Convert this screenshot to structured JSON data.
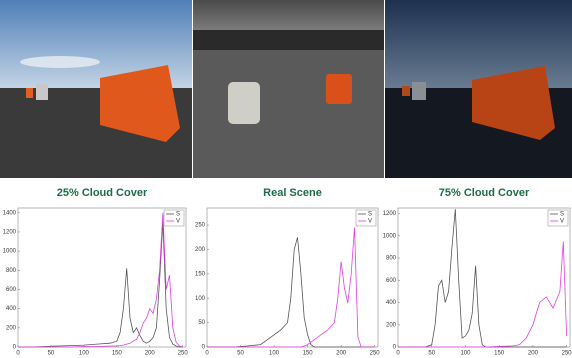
{
  "chart_data": [
    {
      "type": "line",
      "title": "25% Cloud Cover",
      "x": [
        0,
        20,
        40,
        60,
        80,
        100,
        120,
        140,
        150,
        155,
        160,
        165,
        170,
        175,
        180,
        185,
        190,
        195,
        200,
        205,
        210,
        215,
        220,
        225,
        230,
        235,
        240,
        245,
        250
      ],
      "series": [
        {
          "name": "S",
          "color": "#555555",
          "values": [
            0,
            0,
            5,
            10,
            15,
            20,
            30,
            40,
            60,
            150,
            400,
            820,
            300,
            150,
            200,
            120,
            60,
            40,
            60,
            100,
            200,
            700,
            1300,
            400,
            100,
            30,
            10,
            0,
            0
          ]
        },
        {
          "name": "V",
          "color": "#e040e0",
          "values": [
            0,
            0,
            0,
            0,
            0,
            5,
            5,
            10,
            10,
            15,
            20,
            30,
            40,
            60,
            80,
            150,
            250,
            300,
            400,
            350,
            500,
            800,
            1400,
            600,
            750,
            200,
            50,
            10,
            0
          ]
        }
      ],
      "xlim": [
        0,
        255
      ],
      "xticks": [
        0,
        50,
        100,
        150,
        200,
        250
      ],
      "ylim": [
        0,
        1450
      ],
      "yticks": [
        0,
        200,
        400,
        600,
        800,
        1000,
        1200,
        1400
      ],
      "legend": "upper right"
    },
    {
      "type": "line",
      "title": "Real Scene",
      "x": [
        0,
        20,
        40,
        60,
        80,
        90,
        100,
        110,
        120,
        125,
        130,
        135,
        140,
        145,
        150,
        155,
        160,
        170,
        180,
        190,
        195,
        200,
        205,
        210,
        215,
        220,
        225,
        230,
        240,
        250
      ],
      "series": [
        {
          "name": "S",
          "color": "#555555",
          "values": [
            0,
            0,
            0,
            2,
            5,
            15,
            25,
            35,
            50,
            100,
            200,
            225,
            150,
            60,
            25,
            5,
            0,
            0,
            0,
            0,
            0,
            0,
            0,
            0,
            0,
            0,
            0,
            0,
            0,
            0
          ]
        },
        {
          "name": "V",
          "color": "#e040e0",
          "values": [
            0,
            0,
            0,
            0,
            0,
            0,
            0,
            0,
            0,
            0,
            0,
            0,
            0,
            2,
            5,
            10,
            15,
            25,
            35,
            50,
            100,
            175,
            120,
            90,
            150,
            245,
            20,
            0,
            0,
            0
          ]
        }
      ],
      "xlim": [
        0,
        255
      ],
      "xticks": [
        0,
        50,
        100,
        150,
        200,
        250
      ],
      "ylim": [
        0,
        285
      ],
      "yticks": [
        0,
        50,
        100,
        150,
        200,
        250
      ],
      "legend": "upper right"
    },
    {
      "type": "line",
      "title": "75% Cloud Cover",
      "x": [
        0,
        20,
        40,
        50,
        55,
        60,
        65,
        70,
        75,
        80,
        85,
        90,
        95,
        100,
        105,
        110,
        115,
        120,
        125,
        130,
        150,
        170,
        180,
        190,
        200,
        210,
        220,
        230,
        240,
        245,
        250
      ],
      "series": [
        {
          "name": "S",
          "color": "#555555",
          "values": [
            0,
            0,
            0,
            20,
            200,
            550,
            600,
            400,
            500,
            900,
            1240,
            600,
            80,
            100,
            150,
            300,
            730,
            200,
            20,
            0,
            0,
            0,
            0,
            0,
            0,
            0,
            0,
            0,
            0,
            0,
            0
          ]
        },
        {
          "name": "V",
          "color": "#e040e0",
          "values": [
            0,
            0,
            0,
            0,
            0,
            0,
            0,
            0,
            0,
            0,
            0,
            0,
            0,
            0,
            0,
            0,
            0,
            0,
            0,
            0,
            5,
            10,
            20,
            80,
            200,
            400,
            450,
            350,
            500,
            950,
            100
          ]
        }
      ],
      "xlim": [
        0,
        255
      ],
      "xticks": [
        0,
        50,
        100,
        150,
        200,
        250
      ],
      "ylim": [
        0,
        1250
      ],
      "yticks": [
        0,
        200,
        400,
        600,
        800,
        1000,
        1200
      ],
      "legend": "upper right"
    }
  ]
}
